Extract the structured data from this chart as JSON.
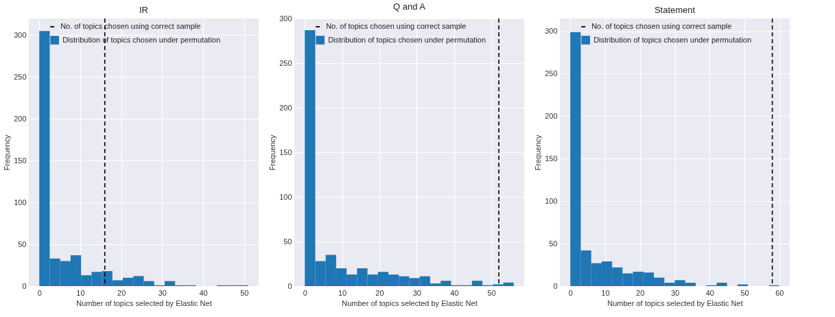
{
  "chart_data": [
    {
      "type": "histogram",
      "title": "IR",
      "xlabel": "Number of topics selected by Elastic Net",
      "ylabel": "Frequency",
      "bins": [
        0,
        2.55,
        5.1,
        7.65,
        10.2,
        12.75,
        15.3,
        17.85,
        20.4,
        22.95,
        25.5,
        28.05,
        30.6,
        33.15,
        35.7,
        38.25,
        40.8,
        43.35,
        45.9,
        48.45,
        51
      ],
      "series": [
        {
          "name": "Distribution of topics chosen under permutation",
          "color": "#1f77b4",
          "values": [
            305,
            33,
            30,
            37,
            13,
            17,
            18,
            7,
            10,
            12,
            6,
            1,
            6,
            1,
            1,
            0,
            0,
            1,
            1,
            1
          ]
        }
      ],
      "ref_lines": [
        {
          "axis": "x",
          "value": 16,
          "label": "No. of topics chosen using correct sample",
          "color": "#000000",
          "line_style": "dashed"
        }
      ],
      "xlim": [
        -2.55,
        53.55
      ],
      "ylim": [
        0,
        320
      ],
      "xticks": [
        0,
        10,
        20,
        30,
        40,
        50
      ],
      "yticks": [
        0,
        50,
        100,
        150,
        200,
        250,
        300
      ],
      "grid": true,
      "legend": "top right"
    },
    {
      "type": "histogram",
      "title": "Q and A",
      "xlabel": "Number of topics selected by Elastic Net",
      "ylabel": "Frequency",
      "bins": [
        0,
        2.8,
        5.6,
        8.4,
        11.2,
        14,
        16.8,
        19.6,
        22.4,
        25.2,
        28,
        30.8,
        33.6,
        36.4,
        39.2,
        42,
        44.8,
        47.6,
        50.4,
        53.2,
        56
      ],
      "series": [
        {
          "name": "Distribution of topics chosen under permutation",
          "color": "#1f77b4",
          "values": [
            287,
            28,
            35,
            20,
            13,
            20,
            13,
            16,
            13,
            11,
            9,
            11,
            3,
            6,
            1,
            1,
            6,
            1,
            2,
            4
          ]
        }
      ],
      "ref_lines": [
        {
          "axis": "x",
          "value": 52,
          "label": "No. of topics chosen using correct sample",
          "color": "#000000",
          "line_style": "dashed"
        }
      ],
      "xlim": [
        -2.8,
        58.8
      ],
      "ylim": [
        0,
        300
      ],
      "xticks": [
        0,
        10,
        20,
        30,
        40,
        50
      ],
      "yticks": [
        0,
        50,
        100,
        150,
        200,
        250,
        300
      ],
      "grid": true,
      "legend": "top right"
    },
    {
      "type": "histogram",
      "title": "Statement",
      "xlabel": "Number of topics selected by Elastic Net",
      "ylabel": "Frequency",
      "bins": [
        0,
        3,
        6,
        9,
        12,
        15,
        18,
        21,
        24,
        27,
        30,
        33,
        36,
        39,
        42,
        45,
        48,
        51,
        54,
        57,
        60
      ],
      "series": [
        {
          "name": "Distribution of topics chosen under permutation",
          "color": "#1f77b4",
          "values": [
            299,
            42,
            27,
            29,
            22,
            15,
            17,
            16,
            10,
            4,
            7,
            4,
            0,
            1,
            4,
            0,
            2,
            0,
            0,
            1
          ]
        }
      ],
      "ref_lines": [
        {
          "axis": "x",
          "value": 58,
          "label": "No. of topics chosen using correct sample",
          "color": "#000000",
          "line_style": "dashed"
        }
      ],
      "xlim": [
        -3,
        63
      ],
      "ylim": [
        0,
        315
      ],
      "xticks": [
        0,
        10,
        20,
        30,
        40,
        50,
        60
      ],
      "yticks": [
        0,
        50,
        100,
        150,
        200,
        250,
        300
      ],
      "grid": true,
      "legend": "top right"
    }
  ]
}
